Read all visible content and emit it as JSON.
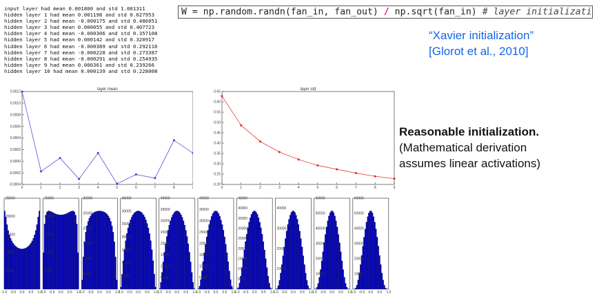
{
  "log_lines": [
    "input layer had mean 0.001800 and std 1.001311",
    "hidden layer 1 had mean 0.001198 and std 0.627953",
    "hidden layer 2 had mean -0.000175 and std 0.486051",
    "hidden layer 3 had mean 0.000055 and std 0.407723",
    "hidden layer 4 had mean -0.000306 and std 0.357108",
    "hidden layer 5 had mean 0.000142 and std 0.320917",
    "hidden layer 6 had mean -0.000389 and std 0.292116",
    "hidden layer 7 had mean -0.000228 and std 0.273387",
    "hidden layer 8 had mean -0.000291 and std 0.254935",
    "hidden layer 9 had mean 0.000361 and std 0.239266",
    "hidden layer 10 had mean 0.000139 and std 0.228008"
  ],
  "code": {
    "part1": "W = np.random.randn(fan_in, fan_out) ",
    "slash": "/",
    "part2": " np.sqrt(fan_in) ",
    "comment": "# layer initialization"
  },
  "citation": {
    "line1": "“Xavier initialization”",
    "line2": "[Glorot et al., 2010]"
  },
  "note": {
    "bold": "Reasonable initialization.",
    "line2": "(Mathematical derivation",
    "line3": "assumes linear activations)"
  },
  "colors": {
    "mean_line": "#3b3bd6",
    "std_line": "#dd2222",
    "hist_bar": "#0000cc",
    "citation": "#1166ee"
  },
  "chart_data": [
    {
      "type": "line",
      "title": "layer mean",
      "x": [
        0,
        1,
        2,
        3,
        4,
        5,
        6,
        7,
        8,
        9
      ],
      "values": [
        0.001198,
        -0.000175,
        5.5e-05,
        -0.000306,
        0.000142,
        -0.000389,
        -0.000228,
        -0.000291,
        0.000361,
        0.000139
      ],
      "ylim": [
        -0.0004,
        0.0012
      ],
      "xlim": [
        0,
        9
      ],
      "yticks": [
        "0.0012",
        "0.0010",
        "0.0008",
        "0.0006",
        "0.0004",
        "0.0002",
        "0.0000",
        "-0.0002",
        "-0.0004"
      ],
      "xticks": [
        "0",
        "1",
        "2",
        "3",
        "4",
        "5",
        "6",
        "7",
        "8",
        "9"
      ]
    },
    {
      "type": "line",
      "title": "layer std",
      "x": [
        0,
        1,
        2,
        3,
        4,
        5,
        6,
        7,
        8,
        9
      ],
      "values": [
        0.627953,
        0.486051,
        0.407723,
        0.357108,
        0.320917,
        0.292116,
        0.273387,
        0.254935,
        0.239266,
        0.228008
      ],
      "ylim": [
        0.2,
        0.65
      ],
      "xlim": [
        0,
        9
      ],
      "yticks": [
        "0.65",
        "0.60",
        "0.55",
        "0.50",
        "0.45",
        "0.40",
        "0.35",
        "0.30",
        "0.25",
        "0.20"
      ],
      "xticks": [
        "0",
        "1",
        "2",
        "3",
        "4",
        "5",
        "6",
        "7",
        "8",
        "9"
      ]
    },
    {
      "type": "bar",
      "title": "",
      "description_of_layers": "histograms of activations for hidden layers 1-10",
      "x_range": [
        -1.0,
        1.0
      ],
      "xticks": [
        "-1.0",
        "-0.5",
        "0.0",
        "0.5",
        "1.0"
      ],
      "layers": [
        {
          "std": 0.627953,
          "ymax": 25000,
          "yticks": [
            "25000",
            "20000",
            "15000",
            "10000",
            "5000"
          ]
        },
        {
          "std": 0.486051,
          "ymax": 25000,
          "yticks": [
            "25000",
            "20000",
            "15000",
            "10000",
            "5000"
          ]
        },
        {
          "std": 0.407723,
          "ymax": 30000,
          "yticks": [
            "30000",
            "25000",
            "20000",
            "15000",
            "10000",
            "5000"
          ]
        },
        {
          "std": 0.357108,
          "ymax": 35000,
          "yticks": [
            "35000",
            "30000",
            "25000",
            "20000",
            "15000",
            "10000",
            "5000"
          ]
        },
        {
          "std": 0.320917,
          "ymax": 40000,
          "yticks": [
            "40000",
            "35000",
            "30000",
            "25000",
            "20000",
            "15000",
            "10000",
            "5000"
          ]
        },
        {
          "std": 0.292116,
          "ymax": 40000,
          "yticks": [
            "40000",
            "35000",
            "30000",
            "25000",
            "20000",
            "15000",
            "10000",
            "5000"
          ]
        },
        {
          "std": 0.273387,
          "ymax": 45000,
          "yticks": [
            "45000",
            "40000",
            "35000",
            "30000",
            "25000",
            "20000",
            "15000",
            "10000",
            "5000"
          ]
        },
        {
          "std": 0.254935,
          "ymax": 45000,
          "yticks": [
            "40000",
            "30000",
            "20000",
            "10000"
          ]
        },
        {
          "std": 0.239266,
          "ymax": 60000,
          "yticks": [
            "60000",
            "50000",
            "40000",
            "30000",
            "20000",
            "10000"
          ]
        },
        {
          "std": 0.228008,
          "ymax": 60000,
          "yticks": [
            "60000",
            "50000",
            "40000",
            "30000",
            "20000",
            "10000"
          ]
        }
      ]
    }
  ]
}
